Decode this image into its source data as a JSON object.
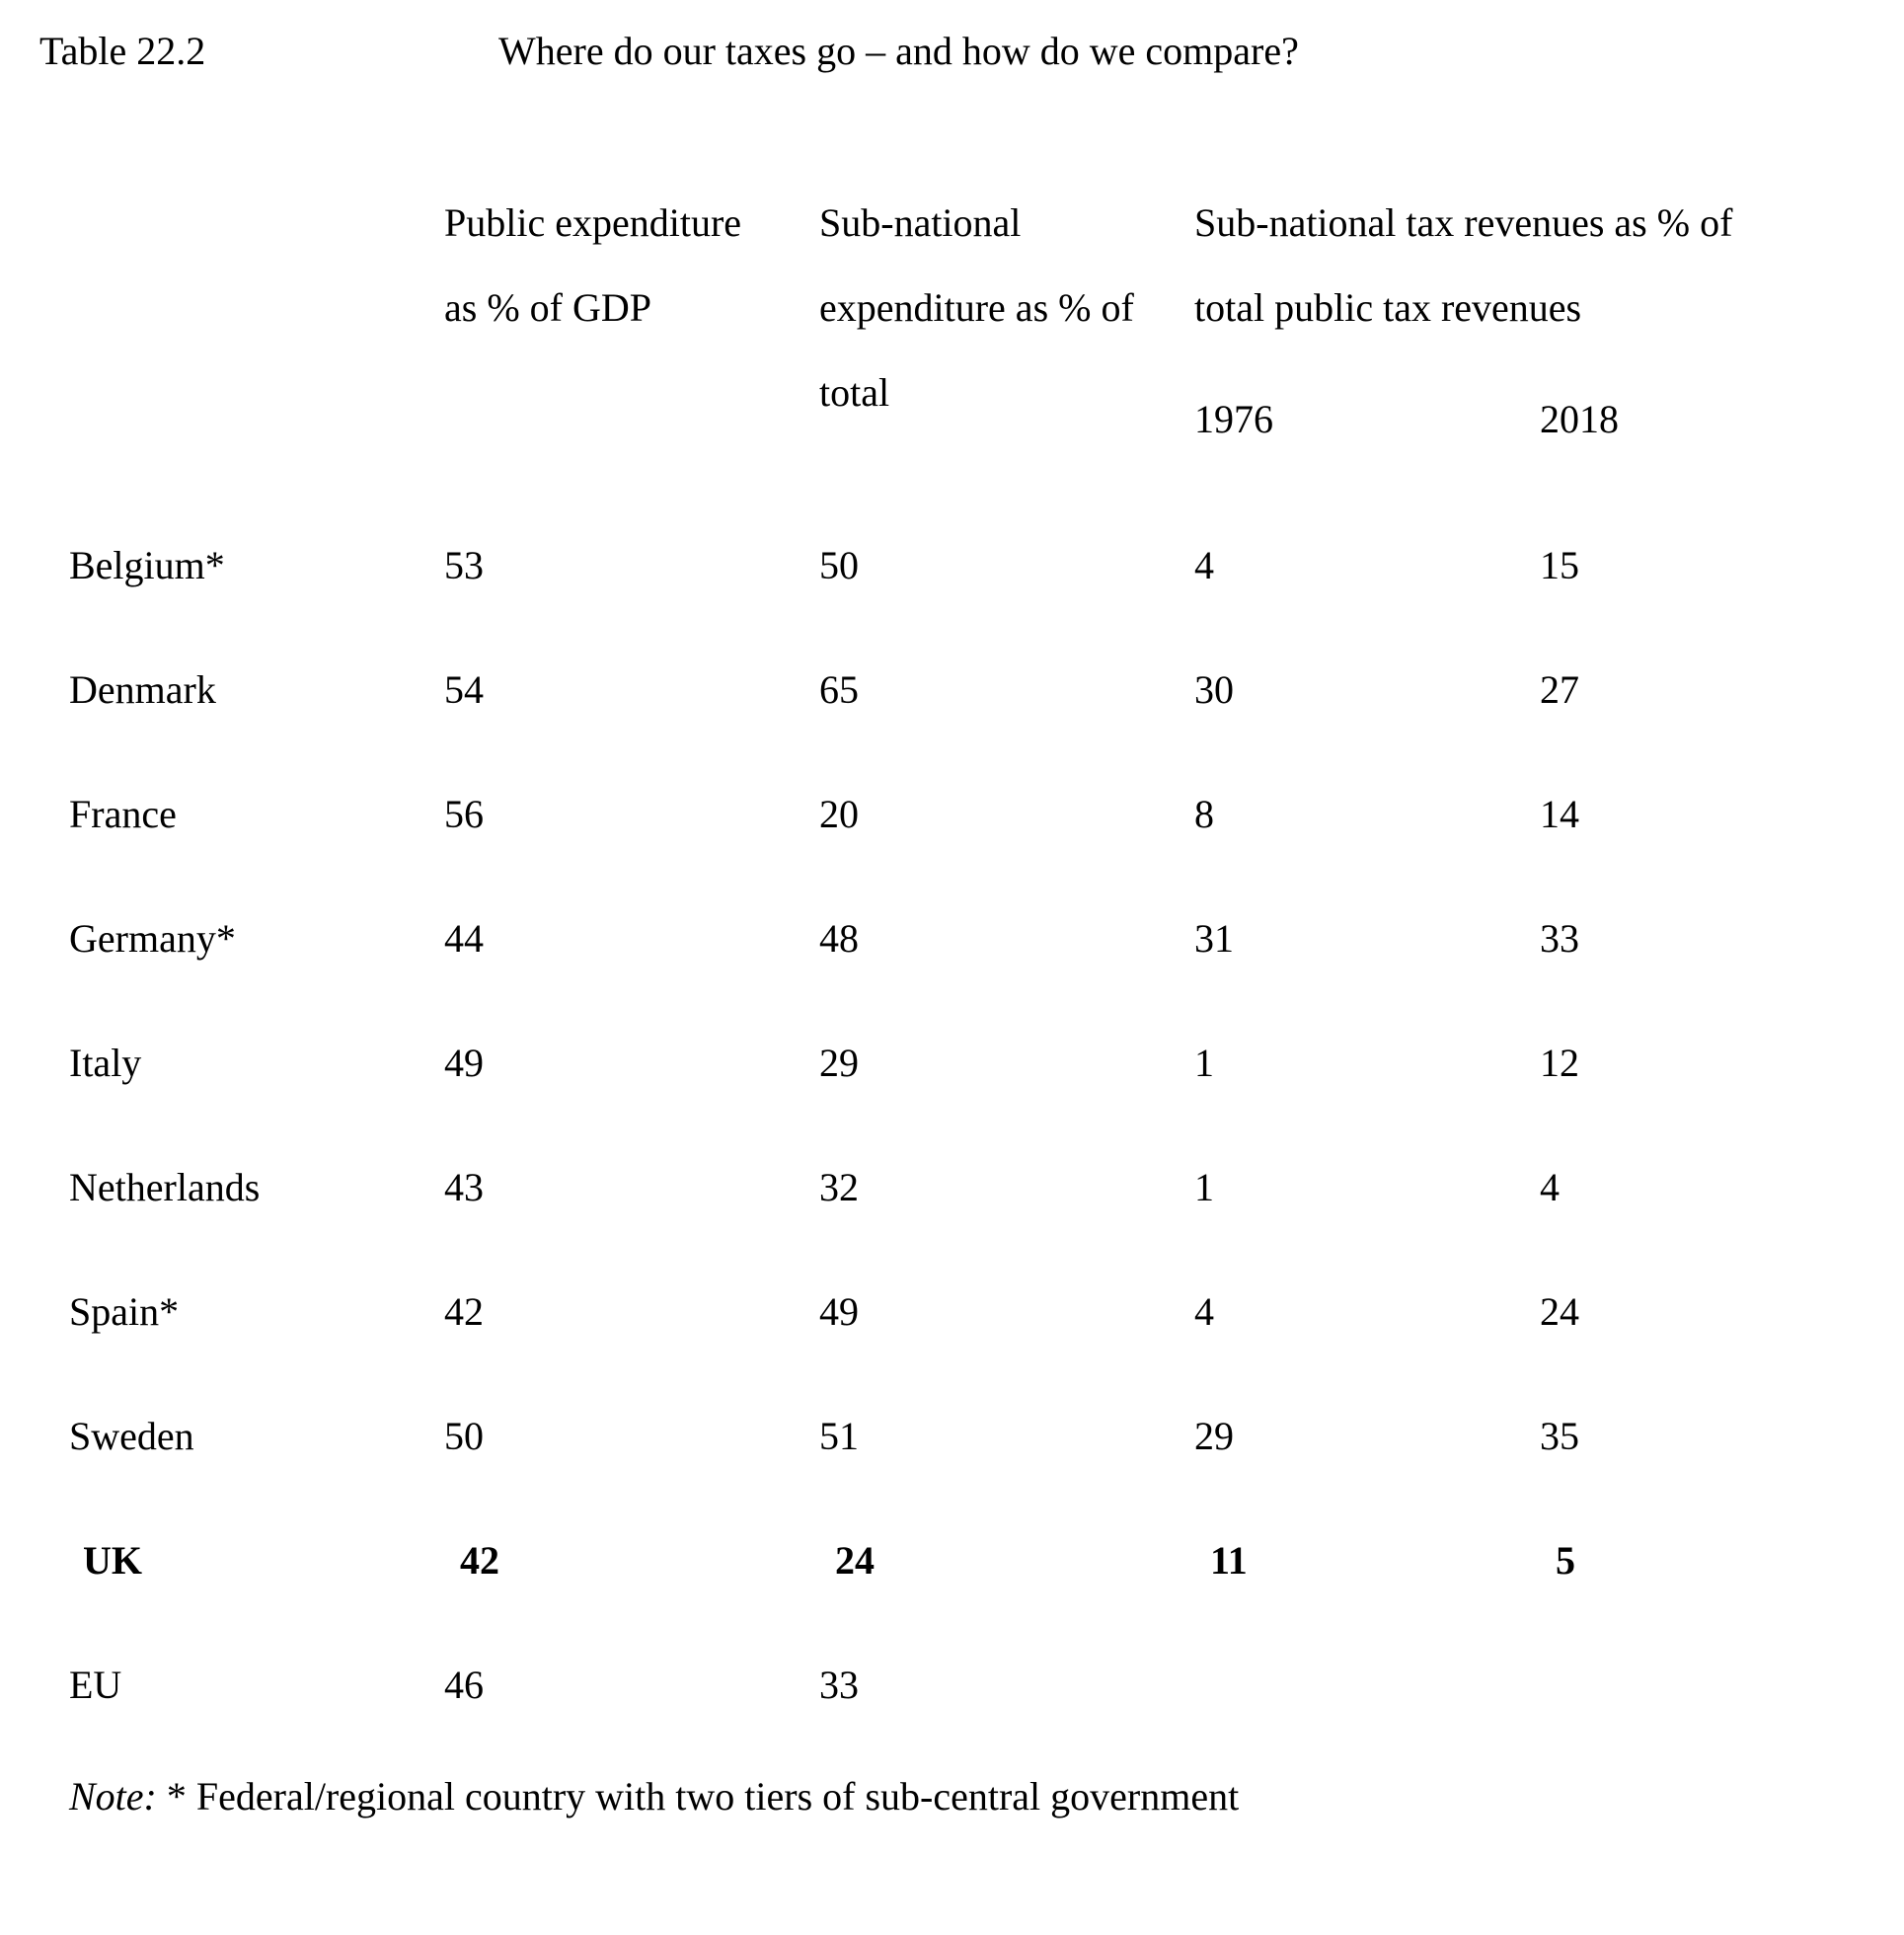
{
  "page": {
    "table_label": "Table 22.2",
    "title": "Where do our taxes go – and how do we compare?"
  },
  "table": {
    "headers": {
      "public_expenditure": "Public expenditure as % of GDP",
      "subnational_expenditure": "Sub-national expenditure as % of total",
      "subnational_tax_group": "Sub-national tax revenues as % of total public tax revenues",
      "year_1976": "1976",
      "year_2018": "2018"
    },
    "rows": [
      {
        "country": "Belgium*",
        "v1": "53",
        "v2": "50",
        "v3": "4",
        "v4": "15"
      },
      {
        "country": "Denmark",
        "v1": "54",
        "v2": "65",
        "v3": "30",
        "v4": "27"
      },
      {
        "country": "France",
        "v1": "56",
        "v2": "20",
        "v3": "8",
        "v4": "14"
      },
      {
        "country": "Germany*",
        "v1": "44",
        "v2": "48",
        "v3": "31",
        "v4": "33"
      },
      {
        "country": "Italy",
        "v1": "49",
        "v2": "29",
        "v3": "1",
        "v4": "12"
      },
      {
        "country": "Netherlands",
        "v1": "43",
        "v2": "32",
        "v3": "1",
        "v4": "4"
      },
      {
        "country": "Spain*",
        "v1": "42",
        "v2": "49",
        "v3": "4",
        "v4": "24"
      },
      {
        "country": "Sweden",
        "v1": "50",
        "v2": "51",
        "v3": "29",
        "v4": "35"
      },
      {
        "country": "UK",
        "v1": "42",
        "v2": "24",
        "v3": "11",
        "v4": "5"
      },
      {
        "country": "EU",
        "v1": "46",
        "v2": "33",
        "v3": "",
        "v4": ""
      }
    ],
    "note": {
      "label": "Note:",
      "text": " * Federal/regional country with two tiers of sub-central government"
    }
  }
}
